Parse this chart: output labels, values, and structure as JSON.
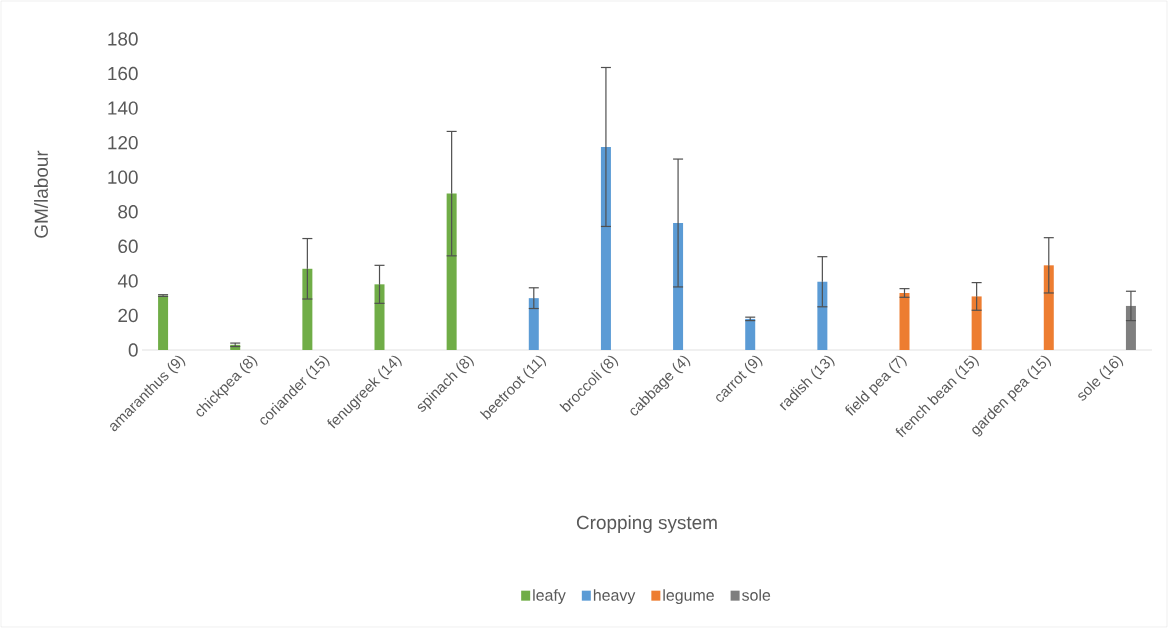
{
  "chart_data": {
    "type": "bar",
    "xlabel": "Cropping system",
    "ylabel": "GM/labour",
    "categories": [
      "amaranthus (9)",
      "chickpea (8)",
      "coriander (15)",
      "fenugreek (14)",
      "spinach (8)",
      "beetroot (11)",
      "broccoli (8)",
      "cabbage (4)",
      "carrot (9)",
      "radish (13)",
      "field pea (7)",
      "french bean (15)",
      "garden pea (15)",
      "sole (16)"
    ],
    "series": [
      {
        "name": "leafy",
        "color": "#70ad47",
        "values": [
          31.5,
          3,
          47,
          38,
          90.5,
          null,
          null,
          null,
          null,
          null,
          null,
          null,
          null,
          null
        ],
        "errors": [
          0.5,
          1,
          17.5,
          11,
          36,
          null,
          null,
          null,
          null,
          null,
          null,
          null,
          null,
          null
        ]
      },
      {
        "name": "heavy",
        "color": "#5b9bd5",
        "values": [
          null,
          null,
          null,
          null,
          null,
          30,
          117.5,
          73.5,
          18,
          39.5,
          null,
          null,
          null,
          null
        ],
        "errors": [
          null,
          null,
          null,
          null,
          null,
          6,
          46,
          37,
          1,
          14.5,
          null,
          null,
          null,
          null
        ]
      },
      {
        "name": "legume",
        "color": "#ed7d31",
        "values": [
          null,
          null,
          null,
          null,
          null,
          null,
          null,
          null,
          null,
          null,
          33,
          31,
          49,
          null
        ],
        "errors": [
          null,
          null,
          null,
          null,
          null,
          null,
          null,
          null,
          null,
          null,
          2.5,
          8,
          16,
          null
        ]
      },
      {
        "name": "sole",
        "color": "#7f7f7f",
        "values": [
          null,
          null,
          null,
          null,
          null,
          null,
          null,
          null,
          null,
          null,
          null,
          null,
          null,
          25.5
        ],
        "errors": [
          null,
          null,
          null,
          null,
          null,
          null,
          null,
          null,
          null,
          null,
          null,
          null,
          null,
          8.5
        ]
      }
    ],
    "ylim": [
      0,
      180
    ],
    "yticks": [
      0,
      20,
      40,
      60,
      80,
      100,
      120,
      140,
      160,
      180
    ],
    "grid": false,
    "legend": "bottom"
  }
}
